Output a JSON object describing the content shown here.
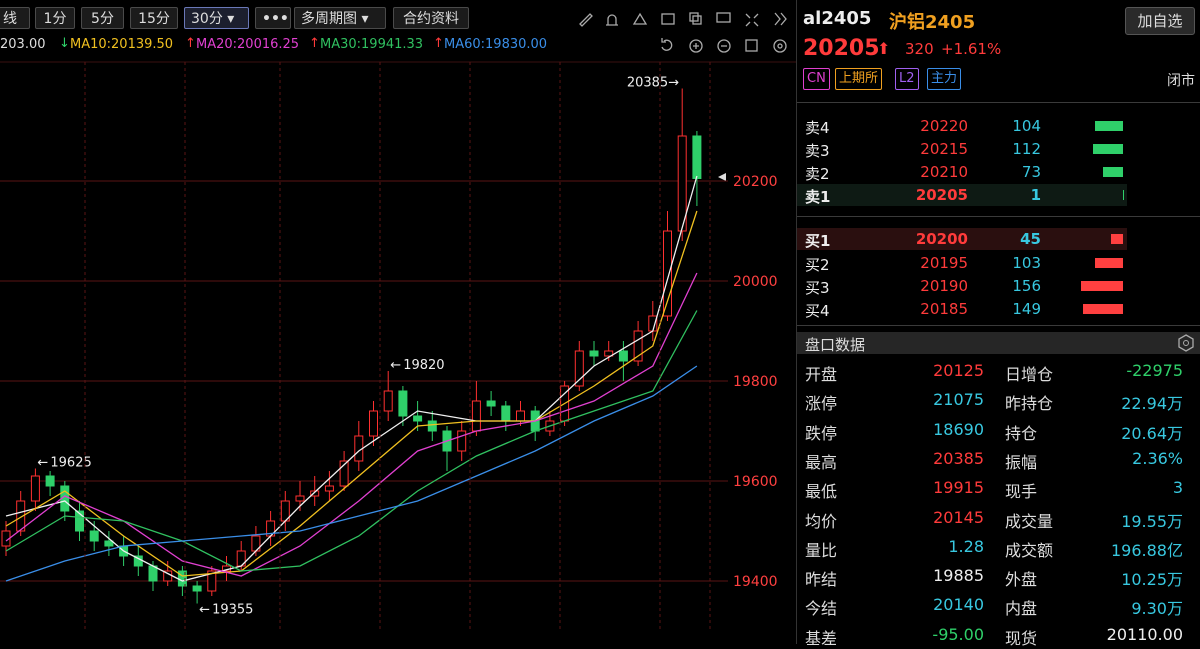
{
  "toolbar": {
    "buttons": [
      "线",
      "1分",
      "5分",
      "15分",
      "30分",
      "多周期图",
      "合约资料"
    ]
  },
  "ma_legend": [
    {
      "text": "203.00",
      "color": "#dddddd",
      "arrow": "none"
    },
    {
      "text": "MA10:20139.50",
      "color": "#f0c020",
      "arrow": "down"
    },
    {
      "text": "MA20:20016.25",
      "color": "#e040d0",
      "arrow": "up"
    },
    {
      "text": "MA30:19941.33",
      "color": "#30c060",
      "arrow": "up"
    },
    {
      "text": "MA60:19830.00",
      "color": "#3a8ee8",
      "arrow": "up"
    }
  ],
  "chart_data": {
    "type": "candlestick",
    "ylim": [
      19282,
      20438
    ],
    "yticks": [
      19400,
      19600,
      19800,
      20000,
      20200
    ],
    "candles": [
      [
        19470,
        19520,
        19450,
        19500
      ],
      [
        19500,
        19580,
        19490,
        19560
      ],
      [
        19560,
        19625,
        19540,
        19610
      ],
      [
        19610,
        19620,
        19570,
        19590
      ],
      [
        19590,
        19600,
        19520,
        19540
      ],
      [
        19540,
        19560,
        19480,
        19500
      ],
      [
        19500,
        19520,
        19460,
        19480
      ],
      [
        19480,
        19500,
        19450,
        19470
      ],
      [
        19470,
        19490,
        19430,
        19450
      ],
      [
        19450,
        19470,
        19410,
        19430
      ],
      [
        19430,
        19440,
        19380,
        19400
      ],
      [
        19400,
        19440,
        19390,
        19420
      ],
      [
        19420,
        19430,
        19370,
        19390
      ],
      [
        19390,
        19400,
        19355,
        19380
      ],
      [
        19380,
        19430,
        19370,
        19420
      ],
      [
        19420,
        19450,
        19400,
        19430
      ],
      [
        19430,
        19480,
        19420,
        19460
      ],
      [
        19460,
        19510,
        19450,
        19490
      ],
      [
        19490,
        19540,
        19470,
        19520
      ],
      [
        19520,
        19580,
        19500,
        19560
      ],
      [
        19560,
        19600,
        19540,
        19570
      ],
      [
        19570,
        19610,
        19550,
        19580
      ],
      [
        19580,
        19620,
        19560,
        19590
      ],
      [
        19590,
        19660,
        19580,
        19640
      ],
      [
        19640,
        19720,
        19620,
        19690
      ],
      [
        19690,
        19760,
        19670,
        19740
      ],
      [
        19740,
        19820,
        19720,
        19780
      ],
      [
        19780,
        19790,
        19710,
        19730
      ],
      [
        19730,
        19760,
        19700,
        19720
      ],
      [
        19720,
        19740,
        19680,
        19700
      ],
      [
        19700,
        19710,
        19620,
        19660
      ],
      [
        19660,
        19720,
        19640,
        19700
      ],
      [
        19700,
        19800,
        19690,
        19760
      ],
      [
        19760,
        19780,
        19730,
        19750
      ],
      [
        19750,
        19760,
        19700,
        19720
      ],
      [
        19720,
        19760,
        19710,
        19740
      ],
      [
        19740,
        19750,
        19680,
        19700
      ],
      [
        19700,
        19740,
        19690,
        19720
      ],
      [
        19720,
        19800,
        19710,
        19790
      ],
      [
        19790,
        19880,
        19780,
        19860
      ],
      [
        19860,
        19880,
        19830,
        19850
      ],
      [
        19850,
        19880,
        19840,
        19860
      ],
      [
        19860,
        19880,
        19800,
        19840
      ],
      [
        19840,
        19920,
        19830,
        19900
      ],
      [
        19900,
        19960,
        19880,
        19930
      ],
      [
        19930,
        20140,
        19920,
        20100
      ],
      [
        20100,
        20385,
        20080,
        20290
      ],
      [
        20290,
        20300,
        20150,
        20205
      ]
    ],
    "series": [
      {
        "name": "MA5",
        "color": "#f0f0f0",
        "x": [
          0,
          4,
          8,
          12,
          16,
          20,
          24,
          28,
          32,
          36,
          40,
          44,
          47
        ],
        "values": [
          19530,
          19560,
          19460,
          19400,
          19430,
          19550,
          19660,
          19740,
          19720,
          19720,
          19830,
          19900,
          20210
        ]
      },
      {
        "name": "MA10",
        "color": "#f0c020",
        "x": [
          0,
          4,
          8,
          12,
          16,
          20,
          24,
          28,
          32,
          36,
          40,
          44,
          47
        ],
        "values": [
          19510,
          19580,
          19490,
          19410,
          19420,
          19510,
          19610,
          19710,
          19720,
          19720,
          19790,
          19870,
          20140
        ]
      },
      {
        "name": "MA20",
        "color": "#e040d0",
        "x": [
          0,
          4,
          8,
          12,
          16,
          20,
          24,
          28,
          32,
          36,
          40,
          44,
          47
        ],
        "values": [
          19480,
          19570,
          19520,
          19440,
          19410,
          19470,
          19560,
          19660,
          19700,
          19720,
          19760,
          19830,
          20016
        ]
      },
      {
        "name": "MA30",
        "color": "#30c060",
        "x": [
          0,
          4,
          8,
          12,
          16,
          20,
          24,
          28,
          32,
          36,
          40,
          44,
          47
        ],
        "values": [
          19460,
          19530,
          19520,
          19480,
          19420,
          19430,
          19490,
          19580,
          19650,
          19700,
          19740,
          19780,
          19941
        ]
      },
      {
        "name": "MA60",
        "color": "#3a8ee8",
        "x": [
          0,
          4,
          8,
          12,
          16,
          20,
          24,
          28,
          32,
          36,
          40,
          44,
          47
        ],
        "values": [
          19400,
          19440,
          19470,
          19480,
          19490,
          19500,
          19530,
          19560,
          19610,
          19660,
          19720,
          19770,
          19830
        ]
      }
    ],
    "annotations": [
      19625,
      19355,
      19820,
      20385
    ]
  },
  "quote": {
    "code": "al2405",
    "name": "沪铝2405",
    "button": "加自选",
    "price": "20205",
    "change": "320",
    "pct": "+1.61%",
    "tags": [
      "CN",
      "上期所",
      "L2",
      "主力"
    ],
    "status": "闭市"
  },
  "order_book": {
    "asks": [
      {
        "label": "卖4",
        "price": "20220",
        "volume": 104
      },
      {
        "label": "卖3",
        "price": "20215",
        "volume": 112
      },
      {
        "label": "卖2",
        "price": "20210",
        "volume": 73
      },
      {
        "label": "卖1",
        "price": "20205",
        "volume": 1
      }
    ],
    "bids": [
      {
        "label": "买1",
        "price": "20200",
        "volume": 45
      },
      {
        "label": "买2",
        "price": "20195",
        "volume": 103
      },
      {
        "label": "买3",
        "price": "20190",
        "volume": 156
      },
      {
        "label": "买4",
        "price": "20185",
        "volume": 149
      }
    ]
  },
  "stats": {
    "title": "盘口数据",
    "rows": [
      [
        {
          "label": "开盘",
          "value": "20125",
          "color": "#ff3b3b"
        },
        {
          "label": "日增仓",
          "value": "-22975",
          "color": "#2fd06a"
        }
      ],
      [
        {
          "label": "涨停",
          "value": "21075",
          "color": "#38c8e0"
        },
        {
          "label": "昨持仓",
          "value": "22.94万",
          "color": "#38c8e0"
        }
      ],
      [
        {
          "label": "跌停",
          "value": "18690",
          "color": "#38c8e0"
        },
        {
          "label": "持仓",
          "value": "20.64万",
          "color": "#38c8e0"
        }
      ],
      [
        {
          "label": "最高",
          "value": "20385",
          "color": "#ff3b3b"
        },
        {
          "label": "振幅",
          "value": "2.36%",
          "color": "#38c8e0"
        }
      ],
      [
        {
          "label": "最低",
          "value": "19915",
          "color": "#ff3b3b"
        },
        {
          "label": "现手",
          "value": "3",
          "color": "#38c8e0"
        }
      ],
      [
        {
          "label": "均价",
          "value": "20145",
          "color": "#ff3b3b"
        },
        {
          "label": "成交量",
          "value": "19.55万",
          "color": "#38c8e0"
        }
      ],
      [
        {
          "label": "量比",
          "value": "1.28",
          "color": "#38c8e0"
        },
        {
          "label": "成交额",
          "value": "196.88亿",
          "color": "#38c8e0"
        }
      ],
      [
        {
          "label": "昨结",
          "value": "19885",
          "color": "#eeeeee"
        },
        {
          "label": "外盘",
          "value": "10.25万",
          "color": "#38c8e0"
        }
      ],
      [
        {
          "label": "今结",
          "value": "20140",
          "color": "#38c8e0"
        },
        {
          "label": "内盘",
          "value": "9.30万",
          "color": "#38c8e0"
        }
      ],
      [
        {
          "label": "基差",
          "value": "-95.00",
          "color": "#2fd06a"
        },
        {
          "label": "现货",
          "value": "20110.00",
          "color": "#eeeeee"
        }
      ]
    ]
  }
}
